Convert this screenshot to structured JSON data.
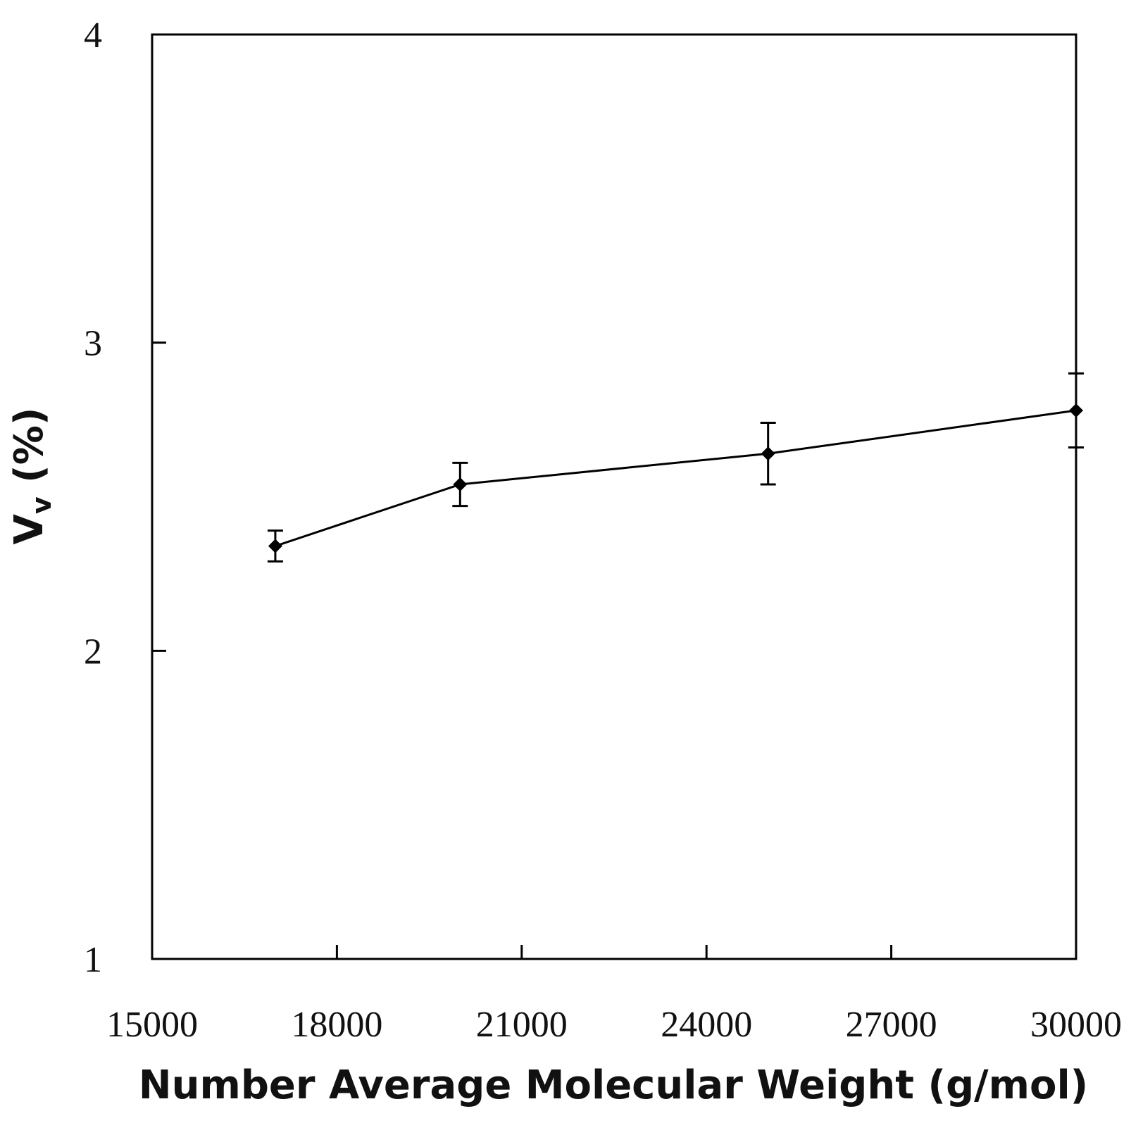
{
  "chart_data": {
    "type": "line",
    "title": "",
    "xlabel": "Number Average Molecular Weight (g/mol)",
    "ylabel": {
      "main": "V",
      "subscript": "v",
      "suffix": " (%)"
    },
    "xlim": [
      15000,
      30000
    ],
    "ylim": [
      1,
      4
    ],
    "xticks": [
      15000,
      18000,
      21000,
      24000,
      27000,
      30000
    ],
    "yticks": [
      1,
      2,
      3,
      4
    ],
    "grid": false,
    "series": [
      {
        "name": "Vv",
        "marker": "diamond",
        "color": "#000000",
        "x": [
          17000,
          20000,
          25000,
          30000
        ],
        "y": [
          2.34,
          2.54,
          2.64,
          2.78
        ],
        "error": [
          0.05,
          0.07,
          0.1,
          0.12
        ]
      }
    ]
  }
}
